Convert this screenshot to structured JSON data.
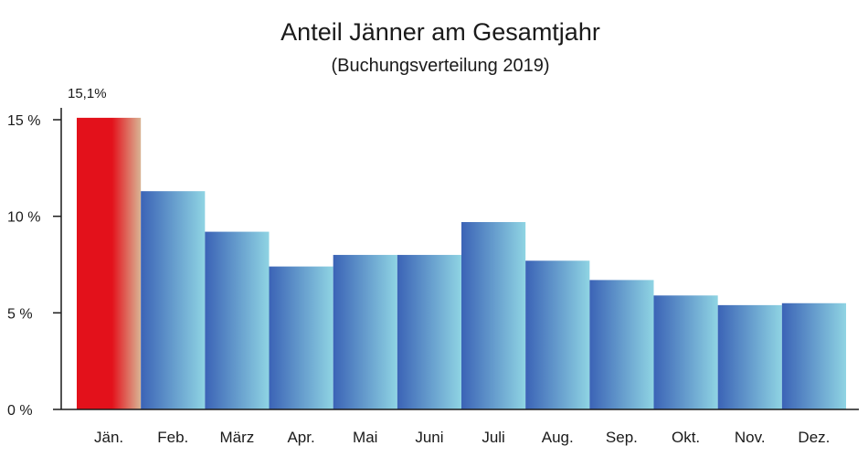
{
  "chart_data": {
    "type": "bar",
    "title": "Anteil Jänner am Gesamtjahr",
    "subtitle": "(Buchungsverteilung 2019)",
    "categories": [
      "Jän.",
      "Feb.",
      "März",
      "Apr.",
      "Mai",
      "Juni",
      "Juli",
      "Aug.",
      "Sep.",
      "Okt.",
      "Nov.",
      "Dez."
    ],
    "values": [
      15.1,
      11.3,
      9.2,
      7.4,
      8.0,
      8.0,
      9.7,
      7.7,
      6.7,
      5.9,
      5.4,
      5.5
    ],
    "ylim": [
      0,
      15
    ],
    "yticks": [
      {
        "value": 0,
        "label": "0 %"
      },
      {
        "value": 5,
        "label": "5 %"
      },
      {
        "value": 10,
        "label": "10 %"
      },
      {
        "value": 15,
        "label": "15 %"
      }
    ],
    "data_labels": [
      {
        "index": 0,
        "text": "15,1%"
      }
    ],
    "highlight_index": 0,
    "colors": {
      "highlight_start": "#e3111b",
      "highlight_end": "#d9b595",
      "bar_start": "#3b63b6",
      "bar_end": "#8fd4e3",
      "axis": "#1a1a1a"
    },
    "grid": false,
    "legend": "none"
  }
}
